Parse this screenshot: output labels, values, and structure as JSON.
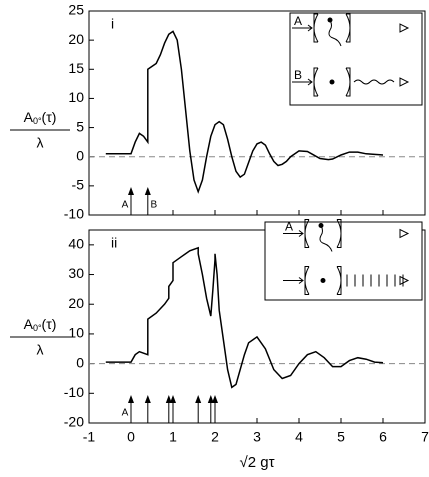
{
  "chart_data": [
    {
      "type": "line",
      "panel_label": "i",
      "ylabel": [
        "A",
        "0°",
        "(τ)"
      ],
      "ylabel_denominator": "λ",
      "xlim": [
        -1,
        7
      ],
      "xticks": [
        -1,
        0,
        1,
        2,
        3,
        4,
        5,
        6,
        7
      ],
      "ylim": [
        -10,
        25
      ],
      "yticks": [
        25,
        20,
        15,
        10,
        5,
        0,
        -5,
        -10
      ],
      "reference_line": 0,
      "color": "#000000",
      "x": [
        -0.6,
        -0.3,
        0,
        0.1,
        0.2,
        0.3,
        0.4,
        0.4,
        0.5,
        0.6,
        0.7,
        0.8,
        0.9,
        1.0,
        1.1,
        1.2,
        1.3,
        1.4,
        1.5,
        1.6,
        1.7,
        1.8,
        1.9,
        2.0,
        2.1,
        2.2,
        2.3,
        2.4,
        2.5,
        2.6,
        2.7,
        2.8,
        2.9,
        3.0,
        3.1,
        3.2,
        3.3,
        3.4,
        3.5,
        3.6,
        3.7,
        3.8,
        4.0,
        4.2,
        4.3,
        4.5,
        4.7,
        4.8,
        5.0,
        5.2,
        5.4,
        5.6,
        5.8,
        6.0
      ],
      "values": [
        0.5,
        0.5,
        0.5,
        2.5,
        4,
        3.5,
        2.5,
        15,
        15.5,
        16,
        17.5,
        19.5,
        21,
        21.5,
        20,
        15,
        8,
        1,
        -4,
        -6,
        -4,
        0,
        3.5,
        5.5,
        6,
        5.5,
        3,
        0,
        -2.5,
        -3.5,
        -3,
        -1,
        1,
        2.2,
        2.5,
        2,
        0.5,
        -0.8,
        -1.5,
        -1.3,
        -0.8,
        0,
        1,
        0.9,
        0.5,
        -0.3,
        -0.5,
        -0.4,
        0.3,
        0.8,
        0.8,
        0.5,
        0.4,
        0.3
      ],
      "arrows": [
        0,
        0.4
      ],
      "arrow_labels": [
        "A",
        "B"
      ],
      "inset_labels": [
        "A",
        "B"
      ]
    },
    {
      "type": "line",
      "panel_label": "ii",
      "ylabel": [
        "A",
        "0°",
        "(τ)"
      ],
      "ylabel_denominator": "λ",
      "xlabel": "√2 gτ",
      "xlim": [
        -1,
        7
      ],
      "xticks": [
        -1,
        0,
        1,
        2,
        3,
        4,
        5,
        6,
        7
      ],
      "ylim": [
        -20,
        45
      ],
      "yticks": [
        40,
        30,
        20,
        10,
        0,
        -10,
        -20
      ],
      "reference_line": 0,
      "color": "#000000",
      "x": [
        -0.6,
        0,
        0.1,
        0.2,
        0.3,
        0.4,
        0.4,
        0.6,
        0.8,
        0.9,
        0.9,
        1.0,
        1.0,
        1.2,
        1.4,
        1.6,
        1.6,
        1.7,
        1.8,
        1.9,
        1.95,
        2.0,
        2.0,
        2.05,
        2.1,
        2.2,
        2.3,
        2.4,
        2.5,
        2.6,
        2.7,
        2.8,
        3.0,
        3.2,
        3.4,
        3.6,
        3.8,
        4.0,
        4.2,
        4.4,
        4.6,
        4.8,
        5.0,
        5.2,
        5.4,
        5.6,
        5.8,
        6.0
      ],
      "values": [
        0.5,
        0.5,
        3,
        4,
        3.5,
        3,
        15,
        17,
        20,
        22,
        26,
        28,
        34,
        36,
        38,
        39,
        37,
        30,
        22,
        16,
        25,
        35,
        37,
        30,
        18,
        8,
        -2,
        -8,
        -7,
        -2,
        3,
        7,
        9,
        5,
        -2,
        -5,
        -4,
        0,
        3,
        4,
        2,
        -1,
        -1,
        1,
        2,
        1.5,
        0.5,
        0.3
      ],
      "arrows": [
        0,
        0.4,
        0.9,
        1.0,
        1.6,
        1.9,
        2.0
      ],
      "arrow_labels": [
        "A"
      ],
      "inset_labels": [
        "A"
      ]
    }
  ]
}
